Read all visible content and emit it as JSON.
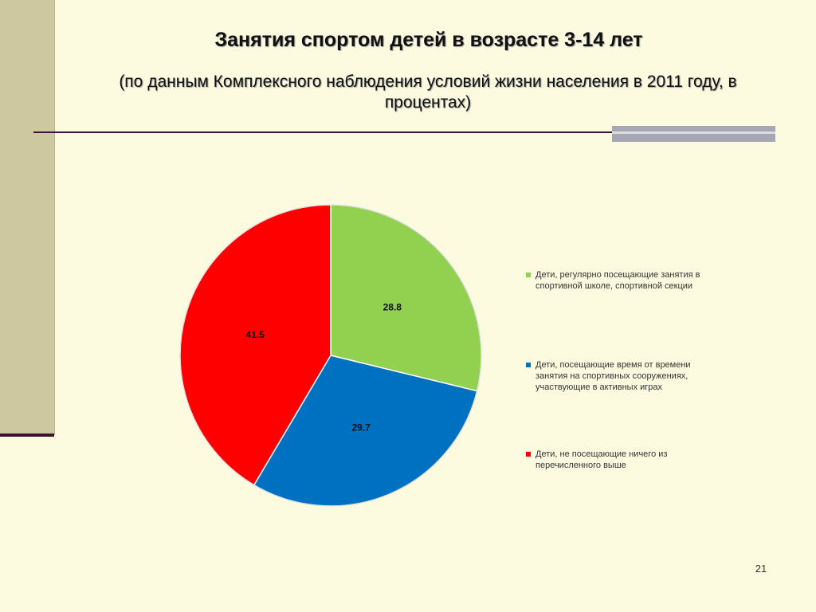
{
  "slide": {
    "title": "Занятия спортом детей в возрасте 3-14 лет",
    "subtitle": "(по данным Комплексного наблюдения условий жизни населения в 2011 году, в процентах)",
    "page_number": "21",
    "colors": {
      "background": "#fcfbe0",
      "band": "#cdc8a0",
      "rule": "#3c1432"
    }
  },
  "chart_data": {
    "type": "pie",
    "title": "",
    "series": [
      {
        "categories": [
          "Дети, регулярно посещающие занятия в спортивной школе, спортивной секции",
          "Дети, посещающие время от времени занятия на спортивных сооружениях, участвующие в активных играх",
          "Дети, не посещающие ничего из перечисленного выше"
        ],
        "values": [
          28.8,
          29.7,
          41.5
        ],
        "labels": [
          "28.8",
          "29.7",
          "41.5"
        ],
        "colors": [
          "#92d050",
          "#0070c0",
          "#ff0000"
        ]
      }
    ],
    "legend": {
      "position": "right",
      "items": [
        "Дети, регулярно посещающие занятия в спортивной школе, спортивной секции",
        "Дети, посещающие время от времени занятия на спортивных сооружениях, участвующие в активных играх",
        "Дети, не посещающие ничего из перечисленного выше"
      ]
    }
  }
}
